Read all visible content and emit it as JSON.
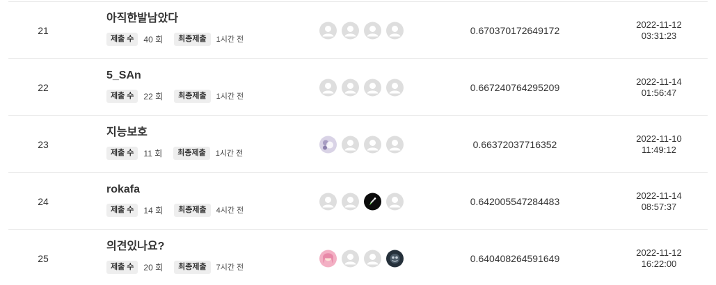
{
  "labels": {
    "submission_count": "제출 수",
    "last_submission": "최종제출"
  },
  "rows": [
    {
      "rank": "21",
      "team": "아직한발남았다",
      "count": "40 회",
      "last_time": "1시간 전",
      "score": "0.670370172649172",
      "date": "2022-11-12",
      "clock": "03:31:23",
      "avatars": [
        "default-avatar-icon",
        "default-avatar-icon",
        "default-avatar-icon",
        "default-avatar-icon"
      ]
    },
    {
      "rank": "22",
      "team": "5_SAn",
      "count": "22 회",
      "last_time": "1시간 전",
      "score": "0.667240764295209",
      "date": "2022-11-14",
      "clock": "01:56:47",
      "avatars": [
        "default-avatar-icon",
        "default-avatar-icon",
        "default-avatar-icon",
        "default-avatar-icon"
      ]
    },
    {
      "rank": "23",
      "team": "지능보호",
      "count": "11 회",
      "last_time": "1시간 전",
      "score": "0.66372037716352",
      "date": "2022-11-10",
      "clock": "11:49:12",
      "avatars": [
        "custom-avatar-icon",
        "default-avatar-icon",
        "default-avatar-icon",
        "default-avatar-icon"
      ]
    },
    {
      "rank": "24",
      "team": "rokafa",
      "count": "14 회",
      "last_time": "4시간 전",
      "score": "0.642005547284483",
      "date": "2022-11-14",
      "clock": "08:57:37",
      "avatars": [
        "default-avatar-icon",
        "default-avatar-icon",
        "custom-avatar-icon",
        "default-avatar-icon"
      ]
    },
    {
      "rank": "25",
      "team": "의견있나요?",
      "count": "20 회",
      "last_time": "7시간 전",
      "score": "0.640408264591649",
      "date": "2022-11-12",
      "clock": "16:22:00",
      "avatars": [
        "custom-avatar-icon",
        "default-avatar-icon",
        "default-avatar-icon",
        "custom-avatar-icon"
      ]
    }
  ]
}
